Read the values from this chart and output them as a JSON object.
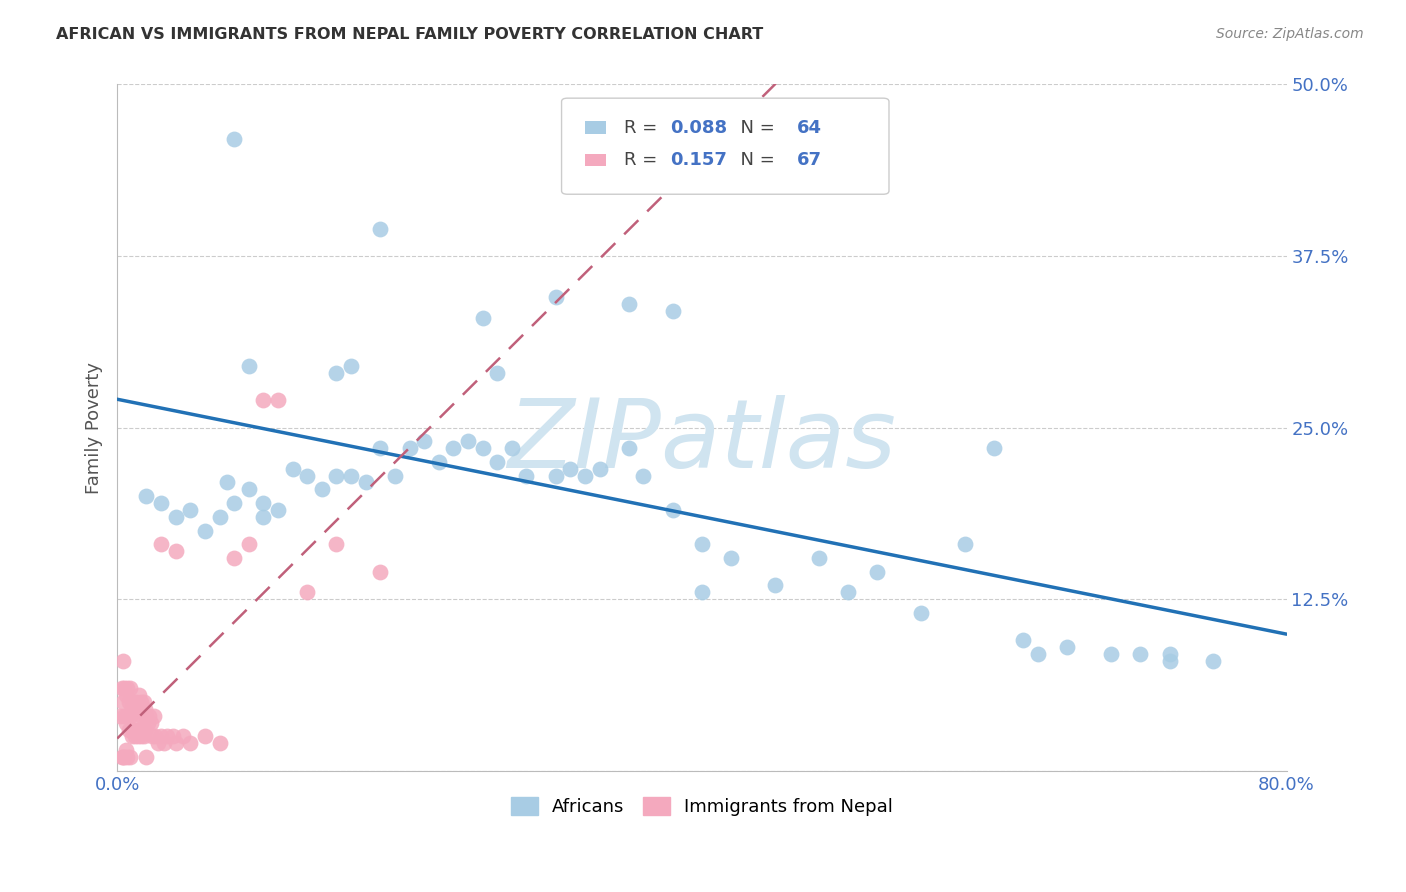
{
  "title": "AFRICAN VS IMMIGRANTS FROM NEPAL FAMILY POVERTY CORRELATION CHART",
  "source": "Source: ZipAtlas.com",
  "ylabel": "Family Poverty",
  "xlim": [
    0,
    0.8
  ],
  "ylim": [
    0,
    0.5
  ],
  "blue_color": "#a8cce4",
  "pink_color": "#f4a9be",
  "trendline_blue": "#2171b5",
  "trendline_pink": "#c0607a",
  "legend_r_blue": "0.088",
  "legend_n_blue": "64",
  "legend_r_pink": "0.157",
  "legend_n_pink": "67",
  "watermark": "ZIPatlas",
  "watermark_color": "#d0e4f0",
  "background_color": "#ffffff",
  "grid_color": "#cccccc",
  "tick_color": "#4472c4",
  "africans_x": [
    0.02,
    0.03,
    0.04,
    0.05,
    0.06,
    0.07,
    0.075,
    0.08,
    0.09,
    0.1,
    0.1,
    0.11,
    0.12,
    0.13,
    0.14,
    0.15,
    0.15,
    0.16,
    0.17,
    0.18,
    0.19,
    0.2,
    0.21,
    0.22,
    0.23,
    0.24,
    0.25,
    0.26,
    0.27,
    0.28,
    0.3,
    0.31,
    0.32,
    0.33,
    0.35,
    0.36,
    0.38,
    0.4,
    0.42,
    0.45,
    0.48,
    0.5,
    0.52,
    0.55,
    0.58,
    0.6,
    0.63,
    0.65,
    0.68,
    0.7,
    0.72,
    0.75,
    0.08,
    0.18,
    0.25,
    0.3,
    0.35,
    0.4,
    0.62,
    0.72,
    0.09,
    0.16,
    0.26,
    0.38
  ],
  "africans_y": [
    0.2,
    0.195,
    0.185,
    0.19,
    0.175,
    0.185,
    0.21,
    0.195,
    0.205,
    0.185,
    0.195,
    0.19,
    0.22,
    0.215,
    0.205,
    0.215,
    0.29,
    0.215,
    0.21,
    0.235,
    0.215,
    0.235,
    0.24,
    0.225,
    0.235,
    0.24,
    0.235,
    0.225,
    0.235,
    0.215,
    0.215,
    0.22,
    0.215,
    0.22,
    0.235,
    0.215,
    0.19,
    0.165,
    0.155,
    0.135,
    0.155,
    0.13,
    0.145,
    0.115,
    0.165,
    0.235,
    0.085,
    0.09,
    0.085,
    0.085,
    0.085,
    0.08,
    0.46,
    0.395,
    0.33,
    0.345,
    0.34,
    0.13,
    0.095,
    0.08,
    0.295,
    0.295,
    0.29,
    0.335
  ],
  "nepal_x": [
    0.002,
    0.003,
    0.004,
    0.004,
    0.005,
    0.005,
    0.006,
    0.006,
    0.007,
    0.007,
    0.008,
    0.008,
    0.009,
    0.009,
    0.01,
    0.01,
    0.011,
    0.011,
    0.012,
    0.012,
    0.013,
    0.013,
    0.014,
    0.014,
    0.015,
    0.015,
    0.016,
    0.016,
    0.017,
    0.017,
    0.018,
    0.018,
    0.019,
    0.019,
    0.02,
    0.021,
    0.022,
    0.023,
    0.024,
    0.025,
    0.026,
    0.028,
    0.03,
    0.032,
    0.034,
    0.038,
    0.04,
    0.045,
    0.05,
    0.06,
    0.07,
    0.08,
    0.09,
    0.1,
    0.11,
    0.13,
    0.15,
    0.18,
    0.03,
    0.04,
    0.003,
    0.004,
    0.005,
    0.006,
    0.007,
    0.009,
    0.02
  ],
  "nepal_y": [
    0.04,
    0.06,
    0.05,
    0.08,
    0.04,
    0.06,
    0.035,
    0.055,
    0.04,
    0.06,
    0.03,
    0.05,
    0.04,
    0.06,
    0.025,
    0.045,
    0.03,
    0.05,
    0.025,
    0.045,
    0.03,
    0.05,
    0.025,
    0.04,
    0.03,
    0.055,
    0.025,
    0.05,
    0.03,
    0.04,
    0.025,
    0.05,
    0.03,
    0.045,
    0.04,
    0.035,
    0.04,
    0.035,
    0.025,
    0.04,
    0.025,
    0.02,
    0.025,
    0.02,
    0.025,
    0.025,
    0.02,
    0.025,
    0.02,
    0.025,
    0.02,
    0.155,
    0.165,
    0.27,
    0.27,
    0.13,
    0.165,
    0.145,
    0.165,
    0.16,
    0.01,
    0.01,
    0.01,
    0.015,
    0.01,
    0.01,
    0.01
  ]
}
